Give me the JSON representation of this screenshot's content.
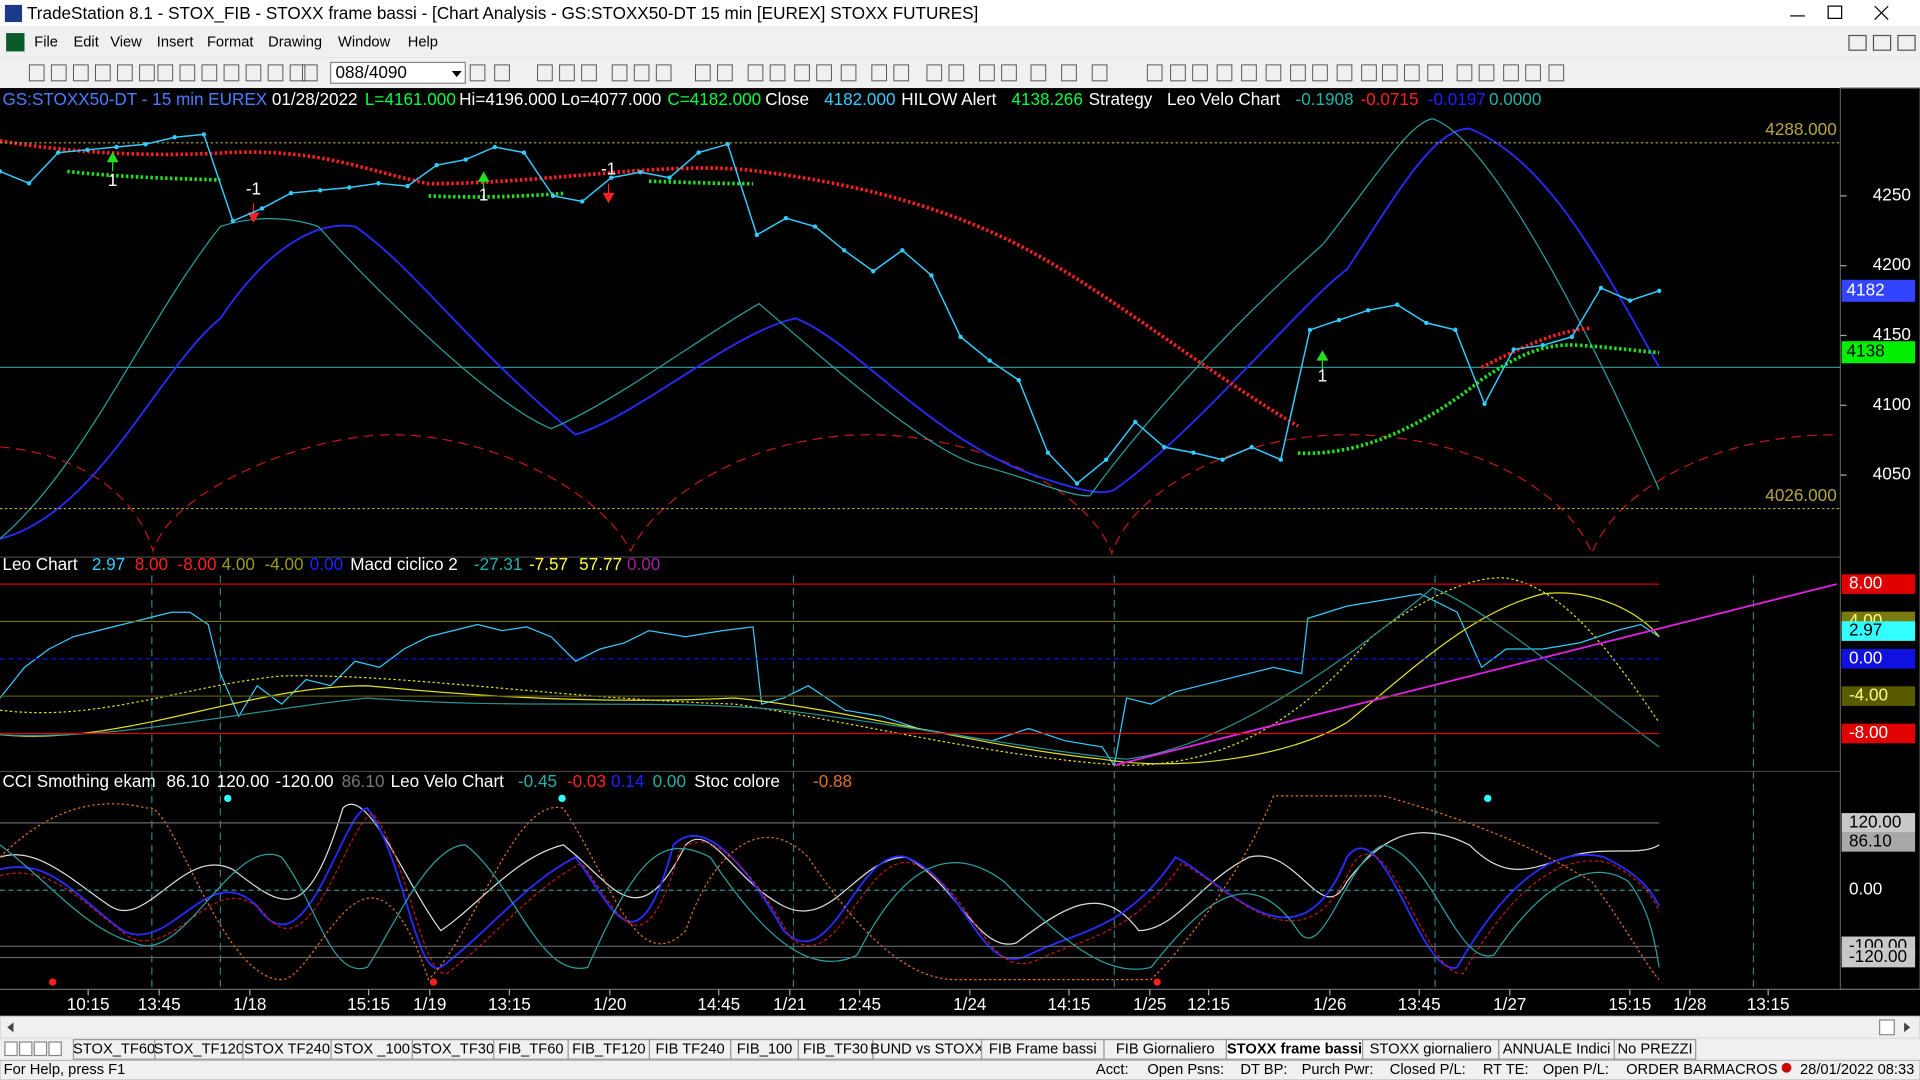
{
  "window": {
    "title": "TradeStation 8.1 - STOX_FIB - STOXX frame bassi - [Chart Analysis - GS:STOXX50-DT  15 min  [EUREX] STOXX FUTURES]"
  },
  "menu": [
    "File",
    "Edit",
    "View",
    "Insert",
    "Format",
    "Drawing",
    "Window",
    "Help"
  ],
  "toolbar": {
    "symbol_combo": "088/4090"
  },
  "chart_data": {
    "type": "line",
    "header": [
      {
        "text": "GS:STOXX50-DT - 15 min",
        "color": "#4a7dff"
      },
      {
        "text": "EUREX",
        "color": "#4a7dff"
      },
      {
        "text": "01/28/2022",
        "color": "#ffffff"
      },
      {
        "text": "L=4161.000",
        "color": "#00ff40"
      },
      {
        "text": "Hi=4196.000",
        "color": "#ffffff"
      },
      {
        "text": "Lo=4077.000",
        "color": "#ffffff"
      },
      {
        "text": "C=4182.000",
        "color": "#00ff40"
      },
      {
        "text": "Close",
        "color": "#ffffff"
      },
      {
        "text": "4182.000",
        "color": "#33ccff"
      },
      {
        "text": "HILOW Alert",
        "color": "#ffffff"
      },
      {
        "text": "4138.266",
        "color": "#00ff40"
      },
      {
        "text": "Strategy",
        "color": "#ffffff"
      },
      {
        "text": "Leo Velo Chart",
        "color": "#ffffff"
      },
      {
        "text": "-0.1908",
        "color": "#20b2aa"
      },
      {
        "text": "-0.0715",
        "color": "#ff2020"
      },
      {
        "text": "-0.0197",
        "color": "#2020ff"
      },
      {
        "text": "0.0000",
        "color": "#20b2aa"
      }
    ],
    "series": [
      {
        "name": "GS:STOXX50-DT",
        "color": "#33ccff",
        "values": [
          4267.5,
          4259,
          4281,
          4283,
          4285,
          4287,
          4292,
          4294,
          4232,
          4241,
          4252,
          4254,
          4256,
          4259,
          4257,
          4272,
          4276,
          4285,
          4281,
          4250,
          4246,
          4263,
          4267,
          4263,
          4281,
          4287,
          4222,
          4234,
          4228,
          4211,
          4196,
          4211,
          4193,
          4149,
          4132,
          4118,
          4066,
          4044,
          4061,
          4088,
          4070,
          4066,
          4061,
          4070,
          4061,
          4154,
          4161,
          4168,
          4172,
          4159,
          4154,
          4101,
          4140,
          4143,
          4149,
          4184,
          4175,
          4182
        ]
      }
    ],
    "ylim": [
      3991.2,
      4325.4
    ],
    "yticks": [
      4050,
      4100,
      4150,
      4200,
      4250
    ],
    "levels": [
      {
        "value": 4288,
        "label": "4288.000"
      },
      {
        "value": 4026,
        "label": "4026.000"
      }
    ],
    "level_color": "#b5a642",
    "markers": [
      {
        "value": 4182,
        "label": "4182",
        "color": "#3344ff"
      },
      {
        "value": 4138,
        "label": "4138",
        "color": "#00ee00"
      }
    ],
    "trade_labels": [
      "1",
      "-1",
      "1",
      "-1",
      "1"
    ]
  },
  "panels": [
    {
      "header": [
        {
          "text": "Leo Chart",
          "color": "#ffffff"
        },
        {
          "text": "2.97",
          "color": "#33ccff"
        },
        {
          "text": "8.00",
          "color": "#ff2020"
        },
        {
          "text": "-8.00",
          "color": "#ff2020"
        },
        {
          "text": "4.00",
          "color": "#9a9a20"
        },
        {
          "text": "-4.00",
          "color": "#9a9a20"
        },
        {
          "text": "0.00",
          "color": "#2020ff"
        },
        {
          "text": "Macd ciclico 2",
          "color": "#ffffff"
        },
        {
          "text": "-27.31",
          "color": "#20b2aa"
        },
        {
          "text": "-7.57",
          "color": "#ffff40"
        },
        {
          "text": "57.77",
          "color": "#ffff40"
        },
        {
          "text": "0.00",
          "color": "#a020a0"
        }
      ],
      "ylim": [
        -11.41,
        8.92
      ],
      "yticks": [
        {
          "value": 8,
          "label": "8.00",
          "color": "#e00000",
          "text_color": "#ffffff"
        },
        {
          "value": 4,
          "label": "4.00",
          "color": "#7a7a10",
          "text_color": "#ffff80"
        },
        {
          "value": 0,
          "label": "0.00",
          "color": "#1010e0",
          "text_color": "#ffffff"
        },
        {
          "value": -4,
          "label": "-4.00",
          "color": "#5a5a00",
          "text_color": "#ffff80"
        },
        {
          "value": -8,
          "label": "-8.00",
          "color": "#e00000",
          "text_color": "#ffffff"
        }
      ],
      "marker": {
        "value": 2.97,
        "label": "2.97",
        "color": "#33ffff",
        "text_color": "#000000"
      }
    },
    {
      "header": [
        {
          "text": "CCI Smothing ekam",
          "color": "#ffffff"
        },
        {
          "text": "86.10",
          "color": "#ffffff"
        },
        {
          "text": "120.00",
          "color": "#ffffff"
        },
        {
          "text": "-120.00",
          "color": "#ffffff"
        },
        {
          "text": "86.10",
          "color": "#777777"
        },
        {
          "text": "Leo Velo Chart",
          "color": "#ffffff"
        },
        {
          "text": "-0.45",
          "color": "#20b2aa"
        },
        {
          "text": "-0.03",
          "color": "#ff2020"
        },
        {
          "text": "0.14",
          "color": "#2020ff"
        },
        {
          "text": "0.00",
          "color": "#20b2aa"
        },
        {
          "text": "Stoc colore",
          "color": "#ffffff"
        },
        {
          "text": "-0.88",
          "color": "#e07020"
        }
      ],
      "ylim": [
        -170.2,
        172.4
      ],
      "yticks": [
        {
          "value": 120,
          "label": "120.00",
          "color": "#c8c8c8",
          "text_color": "#000000"
        },
        {
          "value": 0,
          "label": "0.00",
          "color": "#000000",
          "text_color": "#ffffff"
        },
        {
          "value": -100,
          "label": "-100.00",
          "color": "#c8c8c8",
          "text_color": "#000000"
        },
        {
          "value": -120,
          "label": "-120.00",
          "color": "#c8c8c8",
          "text_color": "#000000"
        }
      ],
      "marker": {
        "value": 86.1,
        "label": "86.10",
        "color": "#a8a8a8",
        "text_color": "#000000"
      }
    }
  ],
  "time_axis": [
    "10:15",
    "13:45",
    "1/18",
    "15:15",
    "1/19",
    "13:15",
    "1/20",
    "14:45",
    "1/21",
    "12:45",
    "1/24",
    "14:15",
    "1/25",
    "12:15",
    "1/26",
    "13:45",
    "1/27",
    "15:15",
    "1/28",
    "13:15"
  ],
  "tabs": [
    {
      "label": "STOX_TF60",
      "active": false
    },
    {
      "label": "STOX_TF120",
      "active": false
    },
    {
      "label": "STOX TF240",
      "active": false
    },
    {
      "label": "STOX _100",
      "active": false
    },
    {
      "label": "STOX_TF30",
      "active": false
    },
    {
      "label": "FIB_TF60",
      "active": false
    },
    {
      "label": "FIB_TF120",
      "active": false
    },
    {
      "label": "FIB TF240",
      "active": false
    },
    {
      "label": "FIB_100",
      "active": false
    },
    {
      "label": "FIB_TF30",
      "active": false
    },
    {
      "label": "BUND vs STOXX",
      "active": false
    },
    {
      "label": "FIB Frame bassi",
      "active": false
    },
    {
      "label": "FIB Giornaliero",
      "active": false
    },
    {
      "label": "STOXX frame bassi",
      "active": true
    },
    {
      "label": "STOXX giornaliero",
      "active": false
    },
    {
      "label": "ANNUALE Indici",
      "active": false
    },
    {
      "label": "No PREZZI",
      "active": false
    }
  ],
  "status": {
    "help": "For Help, press F1",
    "fields": [
      "Acct:",
      "Open Psns:",
      "DT BP:",
      "Purch Pwr:",
      "Closed P/L:",
      "RT TE:",
      "Open P/L:"
    ],
    "order_bar": "ORDER BAR",
    "macros": "MACROS",
    "datetime": "28/01/2022 08:33"
  }
}
